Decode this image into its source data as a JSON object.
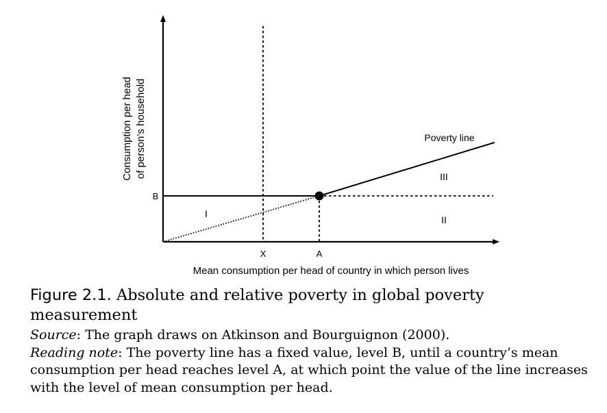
{
  "diagram": {
    "y_axis_label_line1": "Consumption per head",
    "y_axis_label_line2": "of person’s household",
    "x_axis_label": "Mean consumption per head of country in which person lives",
    "tick_b": "B",
    "tick_x": "X",
    "tick_a": "A",
    "curve_label": "Poverty line",
    "region_1": "I",
    "region_2": "II",
    "region_3": "III"
  },
  "caption": {
    "figure_label": "Figure 2.1.",
    "title": " Absolute and relative poverty in global poverty measurement",
    "source_label": "Source",
    "source_text": ": The graph draws on Atkinson and Bourguignon (2000).",
    "note_label": "Reading note",
    "note_text": ": The poverty line has a fixed value, level B, until a country’s mean consumption per head reaches level A, at which point the value of the line increases with the level of mean consumption per head."
  }
}
